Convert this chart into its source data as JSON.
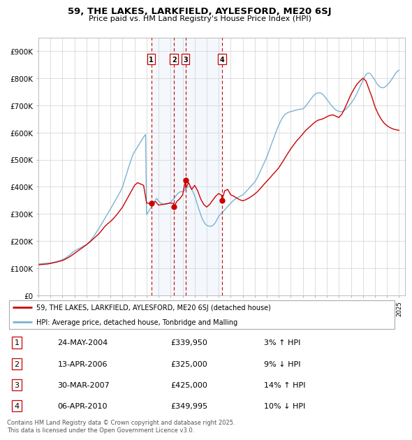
{
  "title": "59, THE LAKES, LARKFIELD, AYLESFORD, ME20 6SJ",
  "subtitle": "Price paid vs. HM Land Registry's House Price Index (HPI)",
  "ylabel_ticks": [
    "£0",
    "£100K",
    "£200K",
    "£300K",
    "£400K",
    "£500K",
    "£600K",
    "£700K",
    "£800K",
    "£900K"
  ],
  "ylabel_values": [
    0,
    100000,
    200000,
    300000,
    400000,
    500000,
    600000,
    700000,
    800000,
    900000
  ],
  "ylim": [
    0,
    950000
  ],
  "xlim_start": 1995.0,
  "xlim_end": 2025.5,
  "hpi_color": "#7ab3d4",
  "price_color": "#cc0000",
  "transaction_color": "#cc0000",
  "shade_color": "#c6dbef",
  "transactions": [
    {
      "id": 1,
      "date": "24-MAY-2004",
      "year": 2004.39,
      "price": 339950,
      "pct": "3%",
      "dir": "↑"
    },
    {
      "id": 2,
      "date": "13-APR-2006",
      "year": 2006.28,
      "price": 325000,
      "pct": "9%",
      "dir": "↓"
    },
    {
      "id": 3,
      "date": "30-MAR-2007",
      "year": 2007.24,
      "price": 425000,
      "pct": "14%",
      "dir": "↑"
    },
    {
      "id": 4,
      "date": "06-APR-2010",
      "year": 2010.27,
      "price": 349995,
      "pct": "10%",
      "dir": "↓"
    }
  ],
  "legend_line1": "59, THE LAKES, LARKFIELD, AYLESFORD, ME20 6SJ (detached house)",
  "legend_line2": "HPI: Average price, detached house, Tonbridge and Malling",
  "footnote": "Contains HM Land Registry data © Crown copyright and database right 2025.\nThis data is licensed under the Open Government Licence v3.0.",
  "hpi_data_years": [
    1995,
    1995.083,
    1995.167,
    1995.25,
    1995.333,
    1995.417,
    1995.5,
    1995.583,
    1995.667,
    1995.75,
    1995.833,
    1995.917,
    1996,
    1996.083,
    1996.167,
    1996.25,
    1996.333,
    1996.417,
    1996.5,
    1996.583,
    1996.667,
    1996.75,
    1996.833,
    1996.917,
    1997,
    1997.083,
    1997.167,
    1997.25,
    1997.333,
    1997.417,
    1997.5,
    1997.583,
    1997.667,
    1997.75,
    1997.833,
    1997.917,
    1998,
    1998.083,
    1998.167,
    1998.25,
    1998.333,
    1998.417,
    1998.5,
    1998.583,
    1998.667,
    1998.75,
    1998.833,
    1998.917,
    1999,
    1999.083,
    1999.167,
    1999.25,
    1999.333,
    1999.417,
    1999.5,
    1999.583,
    1999.667,
    1999.75,
    1999.833,
    1999.917,
    2000,
    2000.083,
    2000.167,
    2000.25,
    2000.333,
    2000.417,
    2000.5,
    2000.583,
    2000.667,
    2000.75,
    2000.833,
    2000.917,
    2001,
    2001.083,
    2001.167,
    2001.25,
    2001.333,
    2001.417,
    2001.5,
    2001.583,
    2001.667,
    2001.75,
    2001.833,
    2001.917,
    2002,
    2002.083,
    2002.167,
    2002.25,
    2002.333,
    2002.417,
    2002.5,
    2002.583,
    2002.667,
    2002.75,
    2002.833,
    2002.917,
    2003,
    2003.083,
    2003.167,
    2003.25,
    2003.333,
    2003.417,
    2003.5,
    2003.583,
    2003.667,
    2003.75,
    2003.833,
    2003.917,
    2004,
    2004.083,
    2004.167,
    2004.25,
    2004.333,
    2004.417,
    2004.5,
    2004.583,
    2004.667,
    2004.75,
    2004.833,
    2004.917,
    2005,
    2005.083,
    2005.167,
    2005.25,
    2005.333,
    2005.417,
    2005.5,
    2005.583,
    2005.667,
    2005.75,
    2005.833,
    2005.917,
    2006,
    2006.083,
    2006.167,
    2006.25,
    2006.333,
    2006.417,
    2006.5,
    2006.583,
    2006.667,
    2006.75,
    2006.833,
    2006.917,
    2007,
    2007.083,
    2007.167,
    2007.25,
    2007.333,
    2007.417,
    2007.5,
    2007.583,
    2007.667,
    2007.75,
    2007.833,
    2007.917,
    2008,
    2008.083,
    2008.167,
    2008.25,
    2008.333,
    2008.417,
    2008.5,
    2008.583,
    2008.667,
    2008.75,
    2008.833,
    2008.917,
    2009,
    2009.083,
    2009.167,
    2009.25,
    2009.333,
    2009.417,
    2009.5,
    2009.583,
    2009.667,
    2009.75,
    2009.833,
    2009.917,
    2010,
    2010.083,
    2010.167,
    2010.25,
    2010.333,
    2010.417,
    2010.5,
    2010.583,
    2010.667,
    2010.75,
    2010.833,
    2010.917,
    2011,
    2011.083,
    2011.167,
    2011.25,
    2011.333,
    2011.417,
    2011.5,
    2011.583,
    2011.667,
    2011.75,
    2011.833,
    2011.917,
    2012,
    2012.083,
    2012.167,
    2012.25,
    2012.333,
    2012.417,
    2012.5,
    2012.583,
    2012.667,
    2012.75,
    2012.833,
    2012.917,
    2013,
    2013.083,
    2013.167,
    2013.25,
    2013.333,
    2013.417,
    2013.5,
    2013.583,
    2013.667,
    2013.75,
    2013.833,
    2013.917,
    2014,
    2014.083,
    2014.167,
    2014.25,
    2014.333,
    2014.417,
    2014.5,
    2014.583,
    2014.667,
    2014.75,
    2014.833,
    2014.917,
    2015,
    2015.083,
    2015.167,
    2015.25,
    2015.333,
    2015.417,
    2015.5,
    2015.583,
    2015.667,
    2015.75,
    2015.833,
    2015.917,
    2016,
    2016.083,
    2016.167,
    2016.25,
    2016.333,
    2016.417,
    2016.5,
    2016.583,
    2016.667,
    2016.75,
    2016.833,
    2016.917,
    2017,
    2017.083,
    2017.167,
    2017.25,
    2017.333,
    2017.417,
    2017.5,
    2017.583,
    2017.667,
    2017.75,
    2017.833,
    2017.917,
    2018,
    2018.083,
    2018.167,
    2018.25,
    2018.333,
    2018.417,
    2018.5,
    2018.583,
    2018.667,
    2018.75,
    2018.833,
    2018.917,
    2019,
    2019.083,
    2019.167,
    2019.25,
    2019.333,
    2019.417,
    2019.5,
    2019.583,
    2019.667,
    2019.75,
    2019.833,
    2019.917,
    2020,
    2020.083,
    2020.167,
    2020.25,
    2020.333,
    2020.417,
    2020.5,
    2020.583,
    2020.667,
    2020.75,
    2020.833,
    2020.917,
    2021,
    2021.083,
    2021.167,
    2021.25,
    2021.333,
    2021.417,
    2021.5,
    2021.583,
    2021.667,
    2021.75,
    2021.833,
    2021.917,
    2022,
    2022.083,
    2022.167,
    2022.25,
    2022.333,
    2022.417,
    2022.5,
    2022.583,
    2022.667,
    2022.75,
    2022.833,
    2022.917,
    2023,
    2023.083,
    2023.167,
    2023.25,
    2023.333,
    2023.417,
    2023.5,
    2023.583,
    2023.667,
    2023.75,
    2023.833,
    2023.917,
    2024,
    2024.083,
    2024.167,
    2024.25,
    2024.333,
    2024.417,
    2024.5,
    2024.583,
    2024.667,
    2024.75,
    2024.833,
    2024.917,
    2025
  ],
  "hpi_data_values": [
    115000,
    115500,
    116000,
    116200,
    116500,
    117000,
    117200,
    117500,
    117800,
    118000,
    118300,
    118600,
    119000,
    119500,
    120000,
    120800,
    121500,
    122500,
    123500,
    124500,
    125500,
    126500,
    128000,
    129500,
    131000,
    133000,
    135000,
    137000,
    139500,
    142000,
    145000,
    148000,
    151000,
    154000,
    157000,
    160000,
    163000,
    165000,
    167000,
    169500,
    171000,
    173000,
    175000,
    177000,
    179000,
    181000,
    183000,
    185000,
    187000,
    190000,
    193500,
    197000,
    201000,
    206000,
    211000,
    216000,
    221500,
    227000,
    232500,
    238000,
    244000,
    250000,
    256000,
    262000,
    268500,
    275000,
    281000,
    287000,
    293500,
    300000,
    306000,
    312000,
    318000,
    324500,
    331000,
    337500,
    344000,
    350500,
    357000,
    363500,
    370000,
    376500,
    383500,
    391000,
    399000,
    411000,
    423000,
    435000,
    447000,
    459000,
    471000,
    482000,
    493000,
    504000,
    514500,
    523000,
    529000,
    535000,
    541000,
    547000,
    553000,
    559000,
    565000,
    571000,
    577000,
    583000,
    588000,
    593000,
    297000,
    303000,
    309000,
    315000,
    321000,
    327000,
    333000,
    339000,
    345000,
    351000,
    357000,
    352000,
    347000,
    343000,
    340000,
    338000,
    336500,
    335500,
    335000,
    335500,
    336000,
    337500,
    339000,
    341000,
    343000,
    347000,
    351000,
    355000,
    360000,
    365000,
    370000,
    374000,
    377500,
    380000,
    381500,
    382000,
    382000,
    384000,
    387000,
    391000,
    395000,
    399000,
    401000,
    400000,
    396000,
    390000,
    383000,
    375000,
    367000,
    355000,
    343000,
    331000,
    319000,
    308000,
    297000,
    287000,
    279000,
    272000,
    266000,
    261000,
    258000,
    256000,
    255000,
    254000,
    254000,
    255000,
    257000,
    260000,
    264000,
    270000,
    277000,
    284000,
    291000,
    295000,
    299000,
    303000,
    307000,
    311000,
    315000,
    319000,
    323000,
    327000,
    331000,
    335000,
    339000,
    343000,
    347000,
    350000,
    353000,
    356000,
    358000,
    360000,
    362000,
    364000,
    366000,
    368000,
    370000,
    373000,
    377000,
    381000,
    385000,
    389000,
    393000,
    397000,
    401000,
    405000,
    409000,
    413000,
    417000,
    423000,
    430000,
    437000,
    445000,
    453000,
    461000,
    469000,
    477000,
    485000,
    493000,
    501000,
    510000,
    519000,
    529000,
    540000,
    550000,
    560000,
    570000,
    580000,
    590000,
    600000,
    610000,
    619000,
    627000,
    635000,
    643000,
    650000,
    656000,
    661000,
    666000,
    669000,
    671000,
    673000,
    675000,
    676000,
    677000,
    678000,
    679000,
    680000,
    681000,
    682000,
    683000,
    684000,
    685000,
    685500,
    686000,
    686500,
    687000,
    690000,
    694000,
    698000,
    703000,
    708000,
    713000,
    718000,
    723000,
    728000,
    733000,
    737000,
    740000,
    743000,
    745000,
    746000,
    746500,
    746000,
    745000,
    743000,
    740000,
    736000,
    732000,
    727000,
    722000,
    717000,
    712000,
    707000,
    702000,
    698000,
    694000,
    690000,
    686000,
    683000,
    681000,
    679000,
    678000,
    677000,
    677000,
    677000,
    678000,
    680000,
    683000,
    686000,
    690000,
    694000,
    698000,
    703000,
    708000,
    713000,
    718000,
    723000,
    730000,
    737000,
    744000,
    752000,
    760000,
    768000,
    776000,
    784000,
    792000,
    800000,
    807000,
    813000,
    817000,
    819000,
    819000,
    817000,
    814000,
    809000,
    804000,
    798000,
    792000,
    786000,
    780000,
    775000,
    771000,
    768000,
    766000,
    765000,
    765000,
    766000,
    768000,
    771000,
    774000,
    778000,
    782000,
    787000,
    792000,
    797000,
    803000,
    809000,
    815000,
    820000,
    824000,
    827000,
    830000
  ],
  "price_data_years": [
    1995.0,
    1995.25,
    1995.5,
    1995.75,
    1996.0,
    1996.25,
    1996.5,
    1996.75,
    1997.0,
    1997.25,
    1997.5,
    1997.75,
    1998.0,
    1998.25,
    1998.5,
    1998.75,
    1999.0,
    1999.25,
    1999.5,
    1999.75,
    2000.0,
    2000.25,
    2000.5,
    2000.75,
    2001.0,
    2001.25,
    2001.5,
    2001.75,
    2002.0,
    2002.25,
    2002.5,
    2002.75,
    2003.0,
    2003.25,
    2003.5,
    2003.75,
    2004.0,
    2004.25,
    2004.39,
    2004.5,
    2004.75,
    2005.0,
    2005.25,
    2005.5,
    2005.75,
    2006.0,
    2006.25,
    2006.28,
    2006.5,
    2006.75,
    2007.0,
    2007.24,
    2007.25,
    2007.5,
    2007.75,
    2008.0,
    2008.25,
    2008.5,
    2008.75,
    2009.0,
    2009.25,
    2009.5,
    2009.75,
    2010.0,
    2010.25,
    2010.27,
    2010.5,
    2010.75,
    2011.0,
    2011.25,
    2011.5,
    2011.75,
    2012.0,
    2012.25,
    2012.5,
    2012.75,
    2013.0,
    2013.25,
    2013.5,
    2013.75,
    2014.0,
    2014.25,
    2014.5,
    2014.75,
    2015.0,
    2015.25,
    2015.5,
    2015.75,
    2016.0,
    2016.25,
    2016.5,
    2016.75,
    2017.0,
    2017.25,
    2017.5,
    2017.75,
    2018.0,
    2018.25,
    2018.5,
    2018.75,
    2019.0,
    2019.25,
    2019.5,
    2019.75,
    2020.0,
    2020.25,
    2020.5,
    2020.75,
    2021.0,
    2021.25,
    2021.5,
    2021.75,
    2022.0,
    2022.25,
    2022.5,
    2022.75,
    2023.0,
    2023.25,
    2023.5,
    2023.75,
    2024.0,
    2024.25,
    2024.5,
    2024.75,
    2025.0
  ],
  "price_data_values": [
    112000,
    113000,
    114000,
    115000,
    117000,
    119500,
    122000,
    125000,
    128000,
    133000,
    139000,
    146000,
    154000,
    162000,
    170000,
    178000,
    186000,
    195000,
    205000,
    215000,
    225000,
    238000,
    252000,
    263000,
    272000,
    283000,
    296000,
    310000,
    325000,
    345000,
    365000,
    385000,
    405000,
    415000,
    410000,
    405000,
    340000,
    338000,
    339950,
    342000,
    345000,
    332000,
    334000,
    336000,
    338000,
    340000,
    338000,
    325000,
    345000,
    355000,
    370000,
    425000,
    395000,
    415000,
    390000,
    405000,
    385000,
    355000,
    335000,
    325000,
    335000,
    350000,
    365000,
    375000,
    368000,
    349995,
    385000,
    390000,
    370000,
    365000,
    358000,
    352000,
    348000,
    352000,
    358000,
    365000,
    373000,
    383000,
    395000,
    408000,
    420000,
    432000,
    445000,
    457000,
    470000,
    487000,
    505000,
    523000,
    540000,
    555000,
    570000,
    582000,
    595000,
    608000,
    618000,
    628000,
    638000,
    645000,
    648000,
    652000,
    658000,
    663000,
    665000,
    660000,
    655000,
    668000,
    690000,
    715000,
    740000,
    760000,
    778000,
    790000,
    800000,
    790000,
    760000,
    730000,
    695000,
    670000,
    650000,
    635000,
    625000,
    618000,
    613000,
    610000,
    608000
  ]
}
